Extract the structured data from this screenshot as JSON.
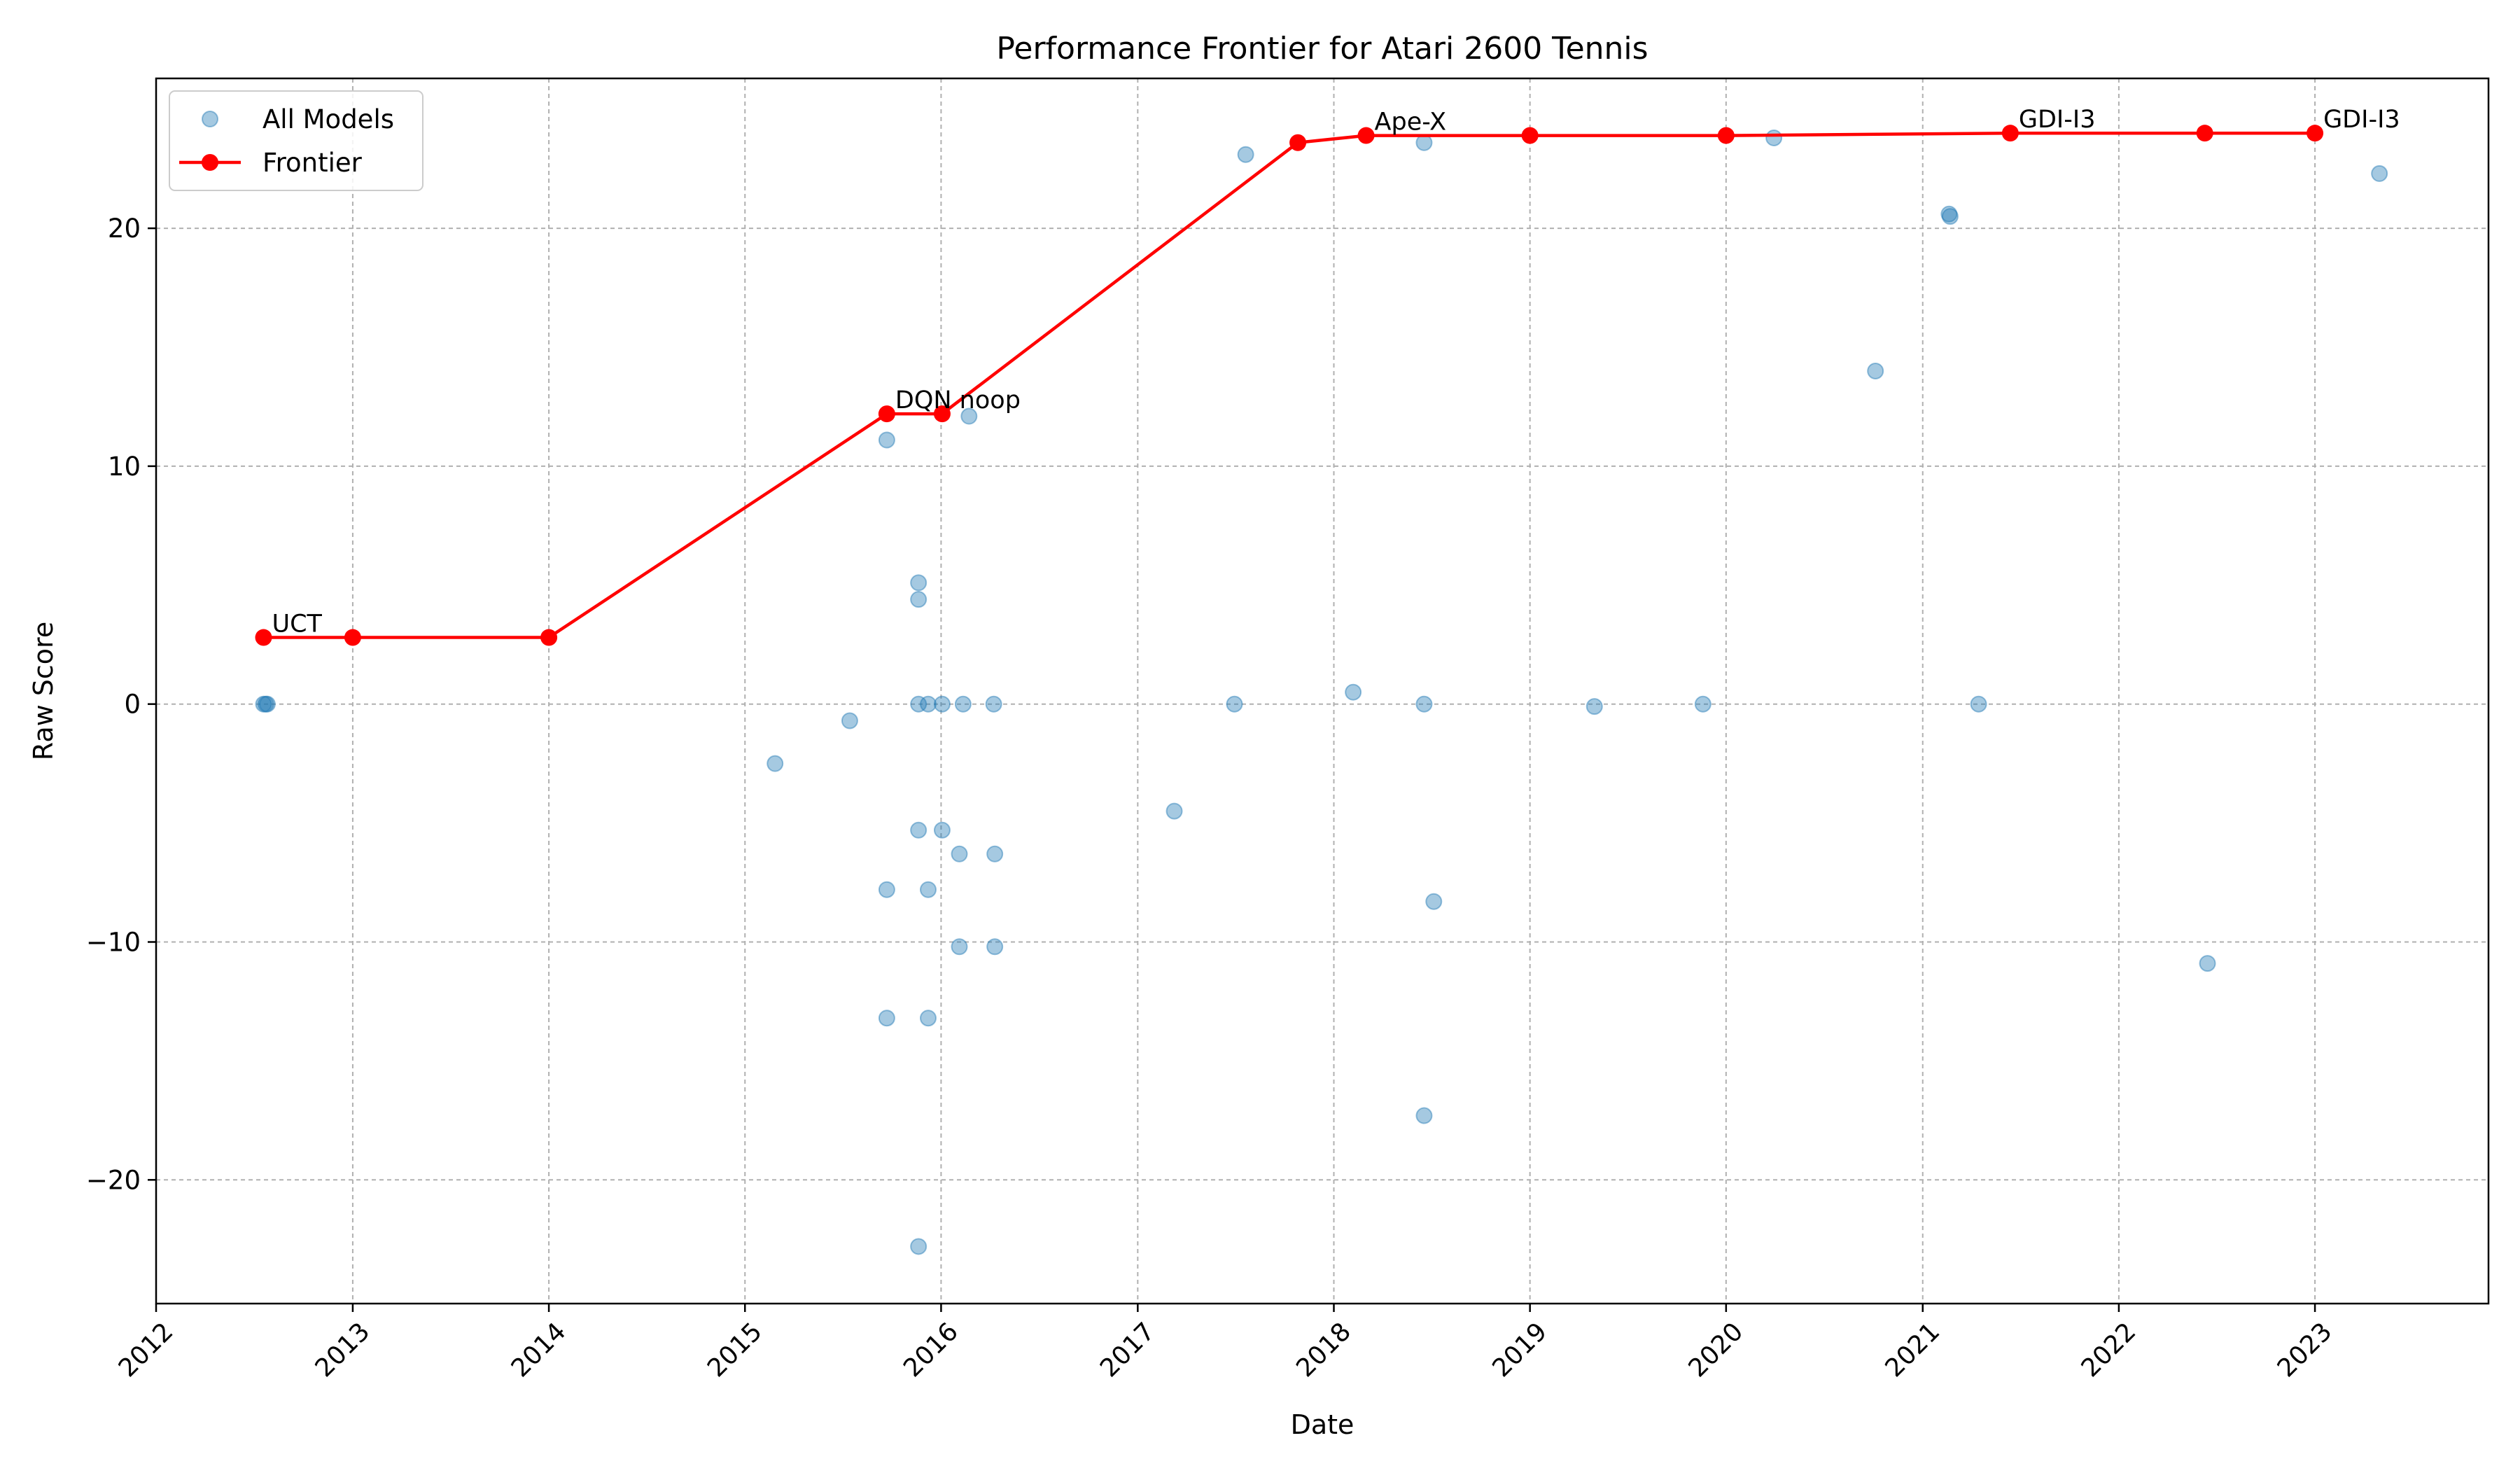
{
  "chart_data": {
    "type": "scatter",
    "title": "Performance Frontier for Atari 2600 Tennis",
    "xlabel": "Date",
    "ylabel": "Raw Score",
    "xlim": [
      "2012-01-01",
      "2023-11-20"
    ],
    "ylim": [
      -25.2,
      26.3
    ],
    "x_tick_labels": [
      "2012",
      "2013",
      "2014",
      "2015",
      "2016",
      "2017",
      "2018",
      "2019",
      "2020",
      "2021",
      "2022",
      "2023"
    ],
    "y_ticks": [
      -20,
      -10,
      0,
      10,
      20
    ],
    "y_tick_labels": [
      "−20",
      "−10",
      "0",
      "10",
      "20"
    ],
    "grid": true,
    "legend_position": "upper-left",
    "legend": [
      "All Models",
      "Frontier"
    ],
    "colors": {
      "all_models": "#1f77b4",
      "frontier": "#ff0000"
    },
    "series": [
      {
        "name": "All Models",
        "type": "scatter",
        "points": [
          {
            "x": "2012-07-19",
            "y": 0
          },
          {
            "x": "2012-07-23",
            "y": 0
          },
          {
            "x": "2012-07-26",
            "y": 0
          },
          {
            "x": "2015-02-26",
            "y": -2.5
          },
          {
            "x": "2015-07-15",
            "y": -0.7
          },
          {
            "x": "2015-09-22",
            "y": 11.1
          },
          {
            "x": "2015-09-22",
            "y": -7.8
          },
          {
            "x": "2015-09-22",
            "y": -13.2
          },
          {
            "x": "2015-11-20",
            "y": 5.1
          },
          {
            "x": "2015-11-20",
            "y": 4.4
          },
          {
            "x": "2015-11-20",
            "y": 0
          },
          {
            "x": "2015-11-20",
            "y": -5.3
          },
          {
            "x": "2015-11-20",
            "y": -22.8
          },
          {
            "x": "2015-12-08",
            "y": 0
          },
          {
            "x": "2015-12-08",
            "y": -7.8
          },
          {
            "x": "2015-12-08",
            "y": -13.2
          },
          {
            "x": "2016-01-03",
            "y": 0
          },
          {
            "x": "2016-01-03",
            "y": -5.3
          },
          {
            "x": "2016-02-04",
            "y": -6.3
          },
          {
            "x": "2016-02-04",
            "y": -10.2
          },
          {
            "x": "2016-02-11",
            "y": 0
          },
          {
            "x": "2016-02-22",
            "y": 12.1
          },
          {
            "x": "2016-04-08",
            "y": 0
          },
          {
            "x": "2016-04-10",
            "y": -6.3
          },
          {
            "x": "2016-04-10",
            "y": -10.2
          },
          {
            "x": "2017-03-10",
            "y": -4.5
          },
          {
            "x": "2017-06-30",
            "y": 0
          },
          {
            "x": "2017-07-21",
            "y": 23.1
          },
          {
            "x": "2018-02-06",
            "y": 0.5
          },
          {
            "x": "2018-06-18",
            "y": 23.6
          },
          {
            "x": "2018-06-18",
            "y": 0
          },
          {
            "x": "2018-06-18",
            "y": -17.3
          },
          {
            "x": "2018-07-06",
            "y": -8.3
          },
          {
            "x": "2019-05-01",
            "y": -0.1
          },
          {
            "x": "2019-11-19",
            "y": 0
          },
          {
            "x": "2020-03-30",
            "y": 23.8
          },
          {
            "x": "2020-10-05",
            "y": 14
          },
          {
            "x": "2021-02-19",
            "y": 20.6
          },
          {
            "x": "2021-02-21",
            "y": 20.5
          },
          {
            "x": "2021-04-15",
            "y": 0
          },
          {
            "x": "2022-06-15",
            "y": -10.9
          },
          {
            "x": "2023-05-01",
            "y": 22.3
          }
        ]
      },
      {
        "name": "Frontier",
        "type": "line",
        "points": [
          {
            "x": "2012-07-19",
            "y": 2.8
          },
          {
            "x": "2013-01-01",
            "y": 2.8
          },
          {
            "x": "2014-01-01",
            "y": 2.8
          },
          {
            "x": "2015-09-22",
            "y": 12.2
          },
          {
            "x": "2016-01-03",
            "y": 12.2
          },
          {
            "x": "2017-10-26",
            "y": 23.6
          },
          {
            "x": "2018-03-02",
            "y": 23.9
          },
          {
            "x": "2019-01-01",
            "y": 23.9
          },
          {
            "x": "2020-01-01",
            "y": 23.9
          },
          {
            "x": "2021-06-13",
            "y": 24.0
          },
          {
            "x": "2022-06-10",
            "y": 24.0
          },
          {
            "x": "2023-01-01",
            "y": 24.0
          }
        ]
      }
    ],
    "annotations": [
      {
        "text": "UCT",
        "x": "2012-07-19",
        "y": 2.8
      },
      {
        "text": "DQN noop",
        "x": "2015-09-22",
        "y": 12.2
      },
      {
        "text": "Ape-X",
        "x": "2018-03-02",
        "y": 23.9
      },
      {
        "text": "GDI-I3",
        "x": "2021-06-13",
        "y": 24.0
      },
      {
        "text": "GDI-I3",
        "x": "2023-01-01",
        "y": 24.0
      }
    ]
  }
}
